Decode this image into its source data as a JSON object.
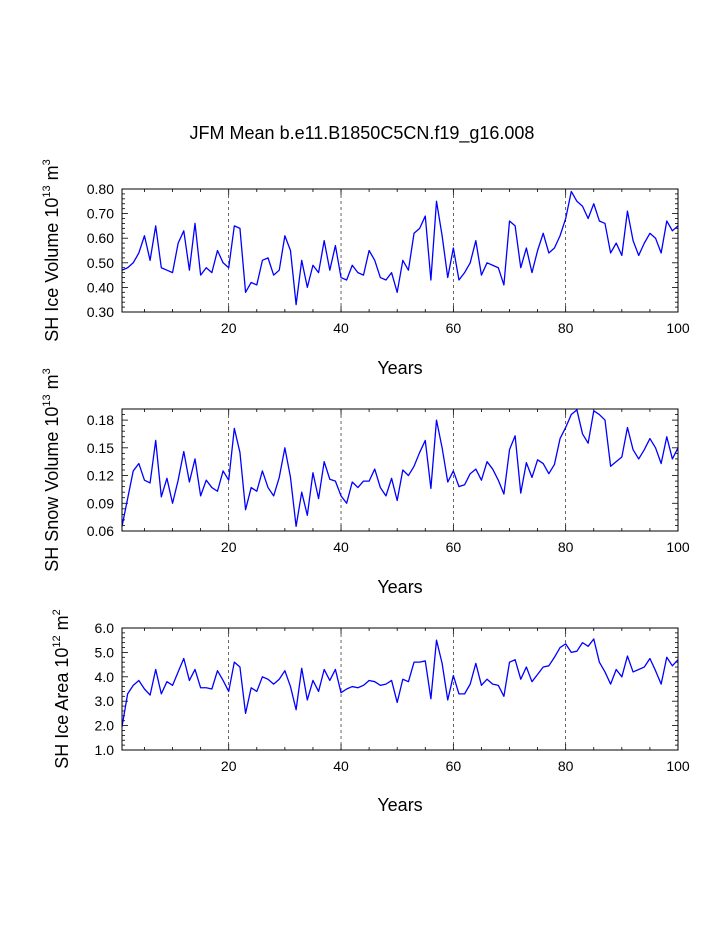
{
  "title": "JFM Mean b.e11.B1850C5CN.f19_g16.008",
  "chart_data": [
    {
      "type": "line",
      "xlabel": "Years",
      "ylabel": {
        "text": "SH Ice Volume 10",
        "exp": "13",
        "unit": " m",
        "unit_exp": "3"
      },
      "xlim": [
        1,
        100
      ],
      "ylim": [
        0.3,
        0.8
      ],
      "xticks": [
        20,
        40,
        60,
        80,
        100
      ],
      "yticks": [
        0.3,
        0.4,
        0.5,
        0.6,
        0.7,
        0.8
      ],
      "ytick_labels": [
        "0.30",
        "0.40",
        "0.50",
        "0.60",
        "0.70",
        "0.80"
      ],
      "grid_x": [
        20,
        40,
        60,
        80
      ],
      "line_color": "#0000ff",
      "x_start": 1,
      "values": [
        0.47,
        0.48,
        0.5,
        0.54,
        0.61,
        0.51,
        0.65,
        0.48,
        0.47,
        0.46,
        0.58,
        0.63,
        0.47,
        0.66,
        0.45,
        0.48,
        0.46,
        0.55,
        0.5,
        0.48,
        0.65,
        0.64,
        0.38,
        0.42,
        0.41,
        0.51,
        0.52,
        0.45,
        0.47,
        0.61,
        0.55,
        0.33,
        0.51,
        0.4,
        0.49,
        0.46,
        0.59,
        0.47,
        0.57,
        0.44,
        0.43,
        0.49,
        0.46,
        0.45,
        0.55,
        0.51,
        0.44,
        0.43,
        0.46,
        0.38,
        0.51,
        0.47,
        0.62,
        0.64,
        0.69,
        0.43,
        0.75,
        0.61,
        0.44,
        0.56,
        0.43,
        0.46,
        0.5,
        0.59,
        0.45,
        0.5,
        0.49,
        0.48,
        0.41,
        0.67,
        0.65,
        0.48,
        0.56,
        0.46,
        0.55,
        0.62,
        0.54,
        0.56,
        0.61,
        0.68,
        0.79,
        0.75,
        0.73,
        0.68,
        0.74,
        0.67,
        0.66,
        0.54,
        0.58,
        0.53,
        0.71,
        0.59,
        0.53,
        0.58,
        0.62,
        0.6,
        0.54,
        0.67,
        0.63,
        0.65
      ]
    },
    {
      "type": "line",
      "xlabel": "Years",
      "ylabel": {
        "text": "SH Snow Volume 10",
        "exp": "13",
        "unit": " m",
        "unit_exp": "3"
      },
      "xlim": [
        1,
        100
      ],
      "ylim": [
        0.06,
        0.192
      ],
      "xticks": [
        20,
        40,
        60,
        80,
        100
      ],
      "yticks": [
        0.06,
        0.09,
        0.12,
        0.15,
        0.18
      ],
      "ytick_labels": [
        "0.06",
        "0.09",
        "0.12",
        "0.15",
        "0.18"
      ],
      "grid_x": [
        20,
        40,
        60,
        80
      ],
      "line_color": "#0000ff",
      "x_start": 1,
      "values": [
        0.065,
        0.095,
        0.125,
        0.133,
        0.115,
        0.112,
        0.158,
        0.097,
        0.117,
        0.09,
        0.115,
        0.146,
        0.113,
        0.138,
        0.098,
        0.115,
        0.107,
        0.103,
        0.125,
        0.115,
        0.171,
        0.145,
        0.083,
        0.107,
        0.103,
        0.125,
        0.107,
        0.098,
        0.118,
        0.15,
        0.118,
        0.065,
        0.102,
        0.077,
        0.123,
        0.095,
        0.135,
        0.116,
        0.114,
        0.098,
        0.09,
        0.113,
        0.107,
        0.114,
        0.114,
        0.127,
        0.107,
        0.098,
        0.117,
        0.093,
        0.126,
        0.12,
        0.13,
        0.145,
        0.158,
        0.106,
        0.18,
        0.15,
        0.113,
        0.125,
        0.108,
        0.11,
        0.122,
        0.127,
        0.115,
        0.135,
        0.127,
        0.115,
        0.1,
        0.148,
        0.163,
        0.101,
        0.134,
        0.118,
        0.137,
        0.133,
        0.122,
        0.132,
        0.16,
        0.172,
        0.186,
        0.191,
        0.165,
        0.155,
        0.19,
        0.186,
        0.18,
        0.13,
        0.135,
        0.14,
        0.172,
        0.148,
        0.138,
        0.148,
        0.16,
        0.15,
        0.133,
        0.162,
        0.138,
        0.15
      ]
    },
    {
      "type": "line",
      "xlabel": "Years",
      "ylabel": {
        "text": "SH Ice Area 10",
        "exp": "12",
        "unit": " m",
        "unit_exp": "2"
      },
      "xlim": [
        1,
        100
      ],
      "ylim": [
        1.0,
        6.0
      ],
      "xticks": [
        20,
        40,
        60,
        80,
        100
      ],
      "yticks": [
        1.0,
        2.0,
        3.0,
        4.0,
        5.0,
        6.0
      ],
      "ytick_labels": [
        "1.0",
        "2.0",
        "3.0",
        "4.0",
        "5.0",
        "6.0"
      ],
      "grid_x": [
        20,
        40,
        60,
        80
      ],
      "line_color": "#0000ff",
      "x_start": 1,
      "values": [
        1.95,
        3.3,
        3.65,
        3.85,
        3.5,
        3.25,
        4.3,
        3.3,
        3.8,
        3.65,
        4.2,
        4.75,
        3.85,
        4.3,
        3.55,
        3.55,
        3.5,
        4.25,
        3.85,
        3.4,
        4.6,
        4.4,
        2.5,
        3.55,
        3.4,
        4.0,
        3.9,
        3.7,
        3.9,
        4.25,
        3.6,
        2.65,
        4.35,
        3.05,
        3.85,
        3.4,
        4.3,
        3.85,
        4.3,
        3.35,
        3.5,
        3.6,
        3.55,
        3.65,
        3.85,
        3.8,
        3.65,
        3.7,
        3.85,
        2.95,
        3.9,
        3.8,
        4.6,
        4.6,
        4.65,
        3.1,
        5.5,
        4.55,
        3.05,
        4.05,
        3.3,
        3.3,
        3.7,
        4.55,
        3.65,
        3.9,
        3.7,
        3.65,
        3.2,
        4.6,
        4.7,
        3.9,
        4.4,
        3.8,
        4.1,
        4.4,
        4.45,
        4.8,
        5.2,
        5.35,
        5.0,
        5.05,
        5.4,
        5.25,
        5.55,
        4.6,
        4.2,
        3.7,
        4.3,
        4.0,
        4.85,
        4.2,
        4.3,
        4.4,
        4.75,
        4.25,
        3.7,
        4.8,
        4.45,
        4.7
      ]
    }
  ]
}
